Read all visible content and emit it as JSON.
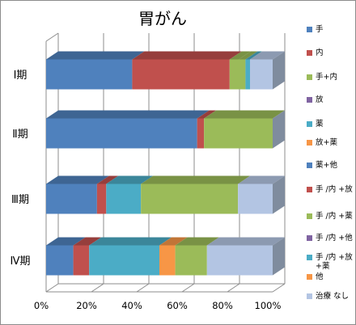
{
  "chart_data": {
    "type": "bar",
    "orientation": "horizontal",
    "stacked": "percent",
    "three_d": true,
    "title": "胃がん",
    "categories": [
      "Ⅰ期",
      "Ⅱ期",
      "Ⅲ期",
      "Ⅳ期"
    ],
    "x_ticks": [
      "0%",
      "20%",
      "40%",
      "60%",
      "80%",
      "100%"
    ],
    "xlim": [
      0,
      100
    ],
    "legend_position": "right",
    "series": [
      {
        "name": "手",
        "color": "#4f81bd",
        "values": [
          38,
          66,
          22,
          12
        ]
      },
      {
        "name": "内",
        "color": "#c0504d",
        "values": [
          43,
          3,
          4,
          7
        ]
      },
      {
        "name": "手+内",
        "color": "#9bbb59",
        "values": [
          4,
          0,
          0,
          0
        ]
      },
      {
        "name": "放",
        "color": "#8064a2",
        "values": [
          0,
          0,
          0,
          0
        ]
      },
      {
        "name": "薬",
        "color": "#4bacc6",
        "values": [
          0,
          0,
          15,
          31
        ]
      },
      {
        "name": "放+薬",
        "color": "#f79646",
        "values": [
          0,
          0,
          0,
          7
        ]
      },
      {
        "name": "薬+他",
        "color": "#4f81bd",
        "values": [
          0,
          0,
          0,
          0
        ]
      },
      {
        "name": "手 /内 +放",
        "color": "#c0504d",
        "values": [
          0,
          0,
          0,
          0
        ]
      },
      {
        "name": "手 /内 +薬",
        "color": "#9bbb59",
        "values": [
          3,
          30,
          42,
          14
        ]
      },
      {
        "name": "手 /内 +他",
        "color": "#8064a2",
        "values": [
          0,
          0,
          0,
          0
        ]
      },
      {
        "name": "手 /内 +放 +薬",
        "color": "#4bacc6",
        "values": [
          2,
          0,
          0,
          0
        ]
      },
      {
        "name": "他",
        "color": "#f79646",
        "values": [
          0,
          0,
          0,
          0
        ]
      },
      {
        "name": "治療 なし",
        "color": "#b3c5e3",
        "values": [
          10,
          0,
          15,
          29
        ]
      }
    ]
  }
}
